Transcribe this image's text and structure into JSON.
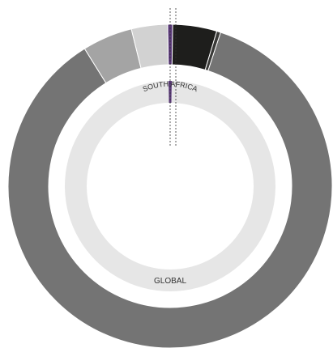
{
  "chart_data": {
    "type": "donut",
    "rings": [
      {
        "values": [
          0.5,
          4.4,
          0.4,
          86.1,
          5,
          3.6
        ],
        "colors": [
          "#5b3a7a",
          "#1e1e1c",
          "#3a3a38",
          "#747474",
          "#a4a4a4",
          "#d2d2d2"
        ]
      },
      {
        "values": [
          0.5,
          99.5
        ],
        "colors": [
          "#5b3a7a",
          "#e6e6e6"
        ]
      }
    ],
    "annotations": [
      "SOUTH AFRICA",
      "GLOBAL"
    ]
  }
}
